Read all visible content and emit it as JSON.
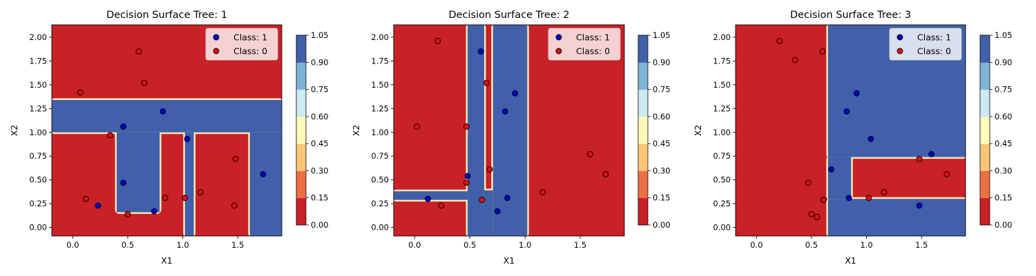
{
  "chart_data": [
    {
      "type": "scatter",
      "title": "Decision Surface Tree: 1",
      "xlabel": "X1",
      "ylabel": "X2",
      "xlim": [
        -0.19,
        1.9
      ],
      "ylim": [
        -0.09,
        2.13
      ],
      "xticks": [
        "0.0",
        "0.5",
        "1.0",
        "1.5"
      ],
      "xtick_values": [
        0,
        0.5,
        1.0,
        1.5
      ],
      "yticks": [
        "0.00",
        "0.25",
        "0.50",
        "0.75",
        "1.00",
        "1.25",
        "1.50",
        "1.75",
        "2.00"
      ],
      "ytick_values": [
        0,
        0.25,
        0.5,
        0.75,
        1.0,
        1.25,
        1.5,
        1.75,
        2.0
      ],
      "legend_position": "top-right",
      "legend": [
        "Class: 1",
        "Class: 0"
      ],
      "colorbar_ticks": [
        "0.00",
        "0.15",
        "0.30",
        "0.45",
        "0.60",
        "0.75",
        "0.90",
        "1.05"
      ],
      "regions_class1": [
        [
          -0.19,
          1.0,
          1.9,
          1.34
        ],
        [
          0.4,
          0.16,
          0.79,
          1.0
        ],
        [
          1.02,
          -0.09,
          1.1,
          1.0
        ],
        [
          1.61,
          -0.09,
          1.9,
          1.0
        ]
      ],
      "series": [
        {
          "name": "Class: 1",
          "color": "#0000cc",
          "points": [
            [
              0.46,
              1.06
            ],
            [
              0.82,
              1.22
            ],
            [
              1.04,
              0.93
            ],
            [
              1.73,
              0.56
            ],
            [
              0.46,
              0.47
            ],
            [
              0.23,
              0.23
            ],
            [
              0.74,
              0.17
            ]
          ]
        },
        {
          "name": "Class: 0",
          "color": "#dd1111",
          "points": [
            [
              0.07,
              1.42
            ],
            [
              0.6,
              1.85
            ],
            [
              0.65,
              1.52
            ],
            [
              0.34,
              0.97
            ],
            [
              1.48,
              0.72
            ],
            [
              0.12,
              0.3
            ],
            [
              0.84,
              0.31
            ],
            [
              1.02,
              0.31
            ],
            [
              1.16,
              0.37
            ],
            [
              1.47,
              0.23
            ],
            [
              0.5,
              0.14
            ]
          ]
        }
      ]
    },
    {
      "type": "scatter",
      "title": "Decision Surface Tree: 2",
      "xlabel": "X1",
      "ylabel": "X2",
      "xlim": [
        -0.19,
        1.9
      ],
      "ylim": [
        -0.09,
        2.13
      ],
      "xticks": [
        "0.0",
        "0.5",
        "1.0",
        "1.5"
      ],
      "xtick_values": [
        0,
        0.5,
        1.0,
        1.5
      ],
      "yticks": [
        "0.00",
        "0.25",
        "0.50",
        "0.75",
        "1.00",
        "1.25",
        "1.50",
        "1.75",
        "2.00"
      ],
      "ytick_values": [
        0,
        0.25,
        0.5,
        0.75,
        1.0,
        1.25,
        1.5,
        1.75,
        2.0
      ],
      "legend_position": "top-right",
      "legend": [
        "Class: 1",
        "Class: 0"
      ],
      "colorbar_ticks": [
        "0.00",
        "0.15",
        "0.30",
        "0.45",
        "0.60",
        "0.75",
        "0.90",
        "1.05"
      ],
      "regions_class1": [
        [
          0.48,
          -0.09,
          0.63,
          2.13
        ],
        [
          0.71,
          -0.09,
          1.02,
          2.13
        ],
        [
          0.63,
          -0.09,
          0.71,
          0.39
        ],
        [
          -0.19,
          0.29,
          0.48,
          0.38
        ]
      ],
      "series": [
        {
          "name": "Class: 1",
          "color": "#0000cc",
          "points": [
            [
              0.6,
              1.85
            ],
            [
              0.91,
              1.41
            ],
            [
              0.82,
              1.22
            ],
            [
              0.48,
              0.54
            ],
            [
              0.12,
              0.3
            ],
            [
              0.84,
              0.31
            ],
            [
              0.75,
              0.17
            ]
          ]
        },
        {
          "name": "Class: 0",
          "color": "#dd1111",
          "points": [
            [
              0.21,
              1.96
            ],
            [
              0.65,
              1.52
            ],
            [
              0.02,
              1.06
            ],
            [
              0.47,
              1.06
            ],
            [
              0.68,
              0.61
            ],
            [
              0.47,
              0.47
            ],
            [
              0.61,
              0.29
            ],
            [
              0.24,
              0.23
            ],
            [
              1.59,
              0.77
            ],
            [
              1.73,
              0.56
            ],
            [
              1.16,
              0.37
            ]
          ]
        }
      ]
    },
    {
      "type": "scatter",
      "title": "Decision Surface Tree: 3",
      "xlabel": "X1",
      "ylabel": "X2",
      "xlim": [
        -0.19,
        1.9
      ],
      "ylim": [
        -0.09,
        2.13
      ],
      "xticks": [
        "0.0",
        "0.5",
        "1.0",
        "1.5"
      ],
      "xtick_values": [
        0,
        0.5,
        1.0,
        1.5
      ],
      "yticks": [
        "0.00",
        "0.25",
        "0.50",
        "0.75",
        "1.00",
        "1.25",
        "1.50",
        "1.75",
        "2.00"
      ],
      "ytick_values": [
        0,
        0.25,
        0.5,
        0.75,
        1.0,
        1.25,
        1.5,
        1.75,
        2.0
      ],
      "legend_position": "top-right",
      "legend": [
        "Class: 1",
        "Class: 0"
      ],
      "colorbar_ticks": [
        "0.00",
        "0.15",
        "0.30",
        "0.45",
        "0.60",
        "0.75",
        "0.90",
        "1.05"
      ],
      "regions_class1": [
        [
          0.65,
          -0.09,
          1.9,
          0.3
        ],
        [
          0.65,
          0.74,
          1.9,
          2.13
        ],
        [
          0.65,
          0.3,
          0.86,
          0.74
        ]
      ],
      "series": [
        {
          "name": "Class: 1",
          "color": "#0000cc",
          "points": [
            [
              0.91,
              1.41
            ],
            [
              0.82,
              1.22
            ],
            [
              1.04,
              0.93
            ],
            [
              1.59,
              0.77
            ],
            [
              0.68,
              0.61
            ],
            [
              0.84,
              0.31
            ],
            [
              1.48,
              0.23
            ]
          ]
        },
        {
          "name": "Class: 0",
          "color": "#dd1111",
          "points": [
            [
              0.21,
              1.96
            ],
            [
              0.35,
              1.76
            ],
            [
              0.6,
              1.85
            ],
            [
              1.48,
              0.72
            ],
            [
              1.73,
              0.56
            ],
            [
              0.47,
              0.47
            ],
            [
              1.16,
              0.37
            ],
            [
              1.02,
              0.31
            ],
            [
              0.61,
              0.29
            ],
            [
              0.5,
              0.14
            ],
            [
              0.55,
              0.11
            ]
          ]
        }
      ]
    }
  ],
  "colors": {
    "class0_region": "#c82127",
    "class1_region": "#4260a9",
    "boundary": "#f6eab7",
    "class1_marker": "#0000cc",
    "class0_marker": "#dd1111",
    "colorbar": [
      "#c82127",
      "#ee6f44",
      "#fcc674",
      "#fefbb9",
      "#cde9f2",
      "#7fb3d5",
      "#4260a9"
    ]
  }
}
